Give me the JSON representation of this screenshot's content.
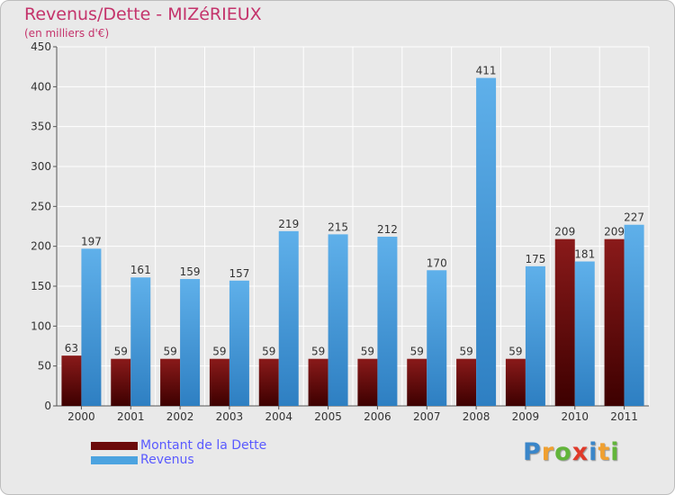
{
  "chart_data": {
    "type": "bar",
    "title": "Revenus/Dette - MIZéRIEUX",
    "subtitle": "(en milliers d'€)",
    "categories": [
      "2000",
      "2001",
      "2002",
      "2003",
      "2004",
      "2005",
      "2006",
      "2007",
      "2008",
      "2009",
      "2010",
      "2011"
    ],
    "series": [
      {
        "name": "Montant de la Dette",
        "color": "#6b0a0a",
        "values": [
          63,
          59,
          59,
          59,
          59,
          59,
          59,
          59,
          59,
          59,
          209,
          209
        ]
      },
      {
        "name": "Revenus",
        "color": "#4ca3e0",
        "values": [
          197,
          161,
          159,
          157,
          219,
          215,
          212,
          170,
          411,
          175,
          181,
          227
        ]
      }
    ],
    "ylim": [
      0,
      450
    ],
    "yticks": [
      0,
      50,
      100,
      150,
      200,
      250,
      300,
      350,
      400,
      450
    ],
    "grid": true,
    "legend": "bottom-left"
  },
  "logo": {
    "letters": [
      {
        "ch": "P",
        "color": "#3a86c9"
      },
      {
        "ch": "r",
        "color": "#f0a030"
      },
      {
        "ch": "o",
        "color": "#62b53a"
      },
      {
        "ch": "x",
        "color": "#e03a2a"
      },
      {
        "ch": "i",
        "color": "#3a86c9"
      },
      {
        "ch": "t",
        "color": "#f0a030"
      },
      {
        "ch": "i",
        "color": "#62b53a"
      }
    ]
  }
}
